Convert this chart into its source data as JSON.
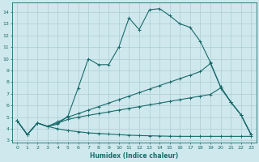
{
  "xlabel": "Humidex (Indice chaleur)",
  "bg_color": "#cfe8ed",
  "grid_color": "#aacdd4",
  "line_color": "#1a6b6b",
  "xlim": [
    -0.5,
    23.5
  ],
  "ylim": [
    2.8,
    14.8
  ],
  "xticks": [
    0,
    1,
    2,
    3,
    4,
    5,
    6,
    7,
    8,
    9,
    10,
    11,
    12,
    13,
    14,
    15,
    16,
    17,
    18,
    19,
    20,
    21,
    22,
    23
  ],
  "yticks": [
    3,
    4,
    5,
    6,
    7,
    8,
    9,
    10,
    11,
    12,
    13,
    14
  ],
  "curve1_x": [
    0,
    1,
    2,
    3,
    4,
    5,
    6,
    7,
    8,
    9,
    10,
    11,
    12,
    13,
    14,
    15,
    16,
    17,
    18,
    19,
    20,
    21,
    22,
    23
  ],
  "curve1_y": [
    4.7,
    3.5,
    4.5,
    4.2,
    4.4,
    5.1,
    7.5,
    10.0,
    9.5,
    9.5,
    11.0,
    13.5,
    12.5,
    14.2,
    14.3,
    13.7,
    13.0,
    12.7,
    11.5,
    9.7,
    7.6,
    6.3,
    5.2,
    3.5
  ],
  "curve2_x": [
    0,
    1,
    2,
    3,
    4,
    5,
    6,
    7,
    8,
    9,
    10,
    11,
    12,
    13,
    14,
    15,
    16,
    17,
    18,
    19,
    20,
    21,
    22,
    23
  ],
  "curve2_y": [
    4.7,
    3.5,
    4.5,
    4.2,
    4.6,
    5.0,
    5.3,
    5.6,
    5.9,
    6.2,
    6.5,
    6.8,
    7.1,
    7.4,
    7.7,
    8.0,
    8.3,
    8.6,
    8.9,
    9.6,
    7.6,
    6.3,
    5.2,
    3.5
  ],
  "curve3_x": [
    0,
    1,
    2,
    3,
    4,
    5,
    6,
    7,
    8,
    9,
    10,
    11,
    12,
    13,
    14,
    15,
    16,
    17,
    18,
    19,
    20,
    21,
    22,
    23
  ],
  "curve3_y": [
    4.7,
    3.5,
    4.5,
    4.2,
    4.5,
    4.8,
    5.0,
    5.15,
    5.3,
    5.45,
    5.6,
    5.75,
    5.9,
    6.05,
    6.2,
    6.35,
    6.5,
    6.65,
    6.8,
    6.95,
    7.5,
    6.3,
    5.2,
    3.5
  ],
  "curve4_x": [
    0,
    1,
    2,
    3,
    4,
    5,
    6,
    7,
    8,
    9,
    10,
    11,
    12,
    13,
    14,
    15,
    16,
    17,
    18,
    19,
    20,
    21,
    22,
    23
  ],
  "curve4_y": [
    4.7,
    3.5,
    4.5,
    4.2,
    4.0,
    3.85,
    3.75,
    3.65,
    3.6,
    3.55,
    3.5,
    3.45,
    3.42,
    3.4,
    3.38,
    3.36,
    3.35,
    3.35,
    3.35,
    3.35,
    3.35,
    3.35,
    3.35,
    3.35
  ]
}
